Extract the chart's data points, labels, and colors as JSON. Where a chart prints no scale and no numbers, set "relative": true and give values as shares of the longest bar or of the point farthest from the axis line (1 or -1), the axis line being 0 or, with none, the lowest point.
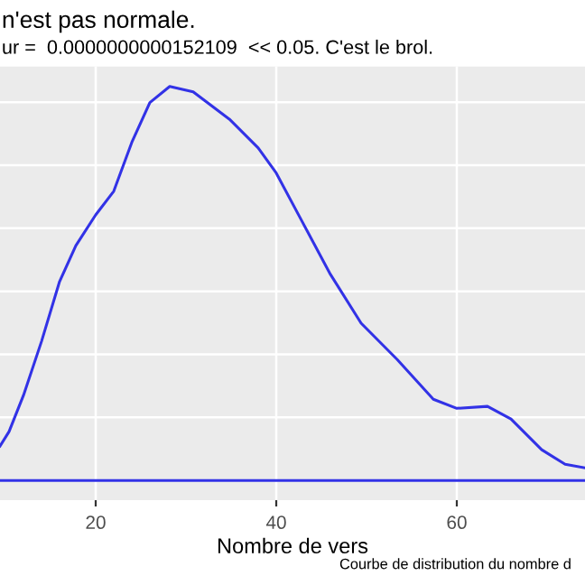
{
  "chart_data": {
    "type": "line",
    "title": "n'est pas normale.",
    "subtitle": "ur =  0.0000000000152109  << 0.05. C'est le brol.",
    "xlabel": "Nombre de vers",
    "annotations": [
      "Courbe de distribution du nombre d"
    ],
    "relative": true,
    "series": [
      {
        "color": "#3232e6",
        "x": [
          9.4,
          10.4,
          12,
          14,
          16,
          17.8,
          20,
          22,
          24,
          26,
          28.2,
          30.8,
          34.8,
          38,
          40,
          42.8,
          46,
          49.4,
          53.4,
          57.4,
          60,
          63.4,
          66,
          69.4,
          72,
          74.2
        ],
        "values": [
          0.087,
          0.124,
          0.216,
          0.353,
          0.505,
          0.596,
          0.674,
          0.734,
          0.858,
          0.959,
          1,
          0.986,
          0.917,
          0.844,
          0.78,
          0.66,
          0.523,
          0.399,
          0.307,
          0.206,
          0.183,
          0.188,
          0.156,
          0.078,
          0.041,
          0.032
        ]
      }
    ],
    "ref_lines": [
      {
        "axis": "y",
        "value": 0,
        "color": "#3232e6"
      }
    ],
    "xlim": [
      9.4,
      74.2
    ],
    "xticks": [
      20,
      40,
      60
    ],
    "grid": true,
    "marker": "none",
    "line_style": "solid"
  }
}
